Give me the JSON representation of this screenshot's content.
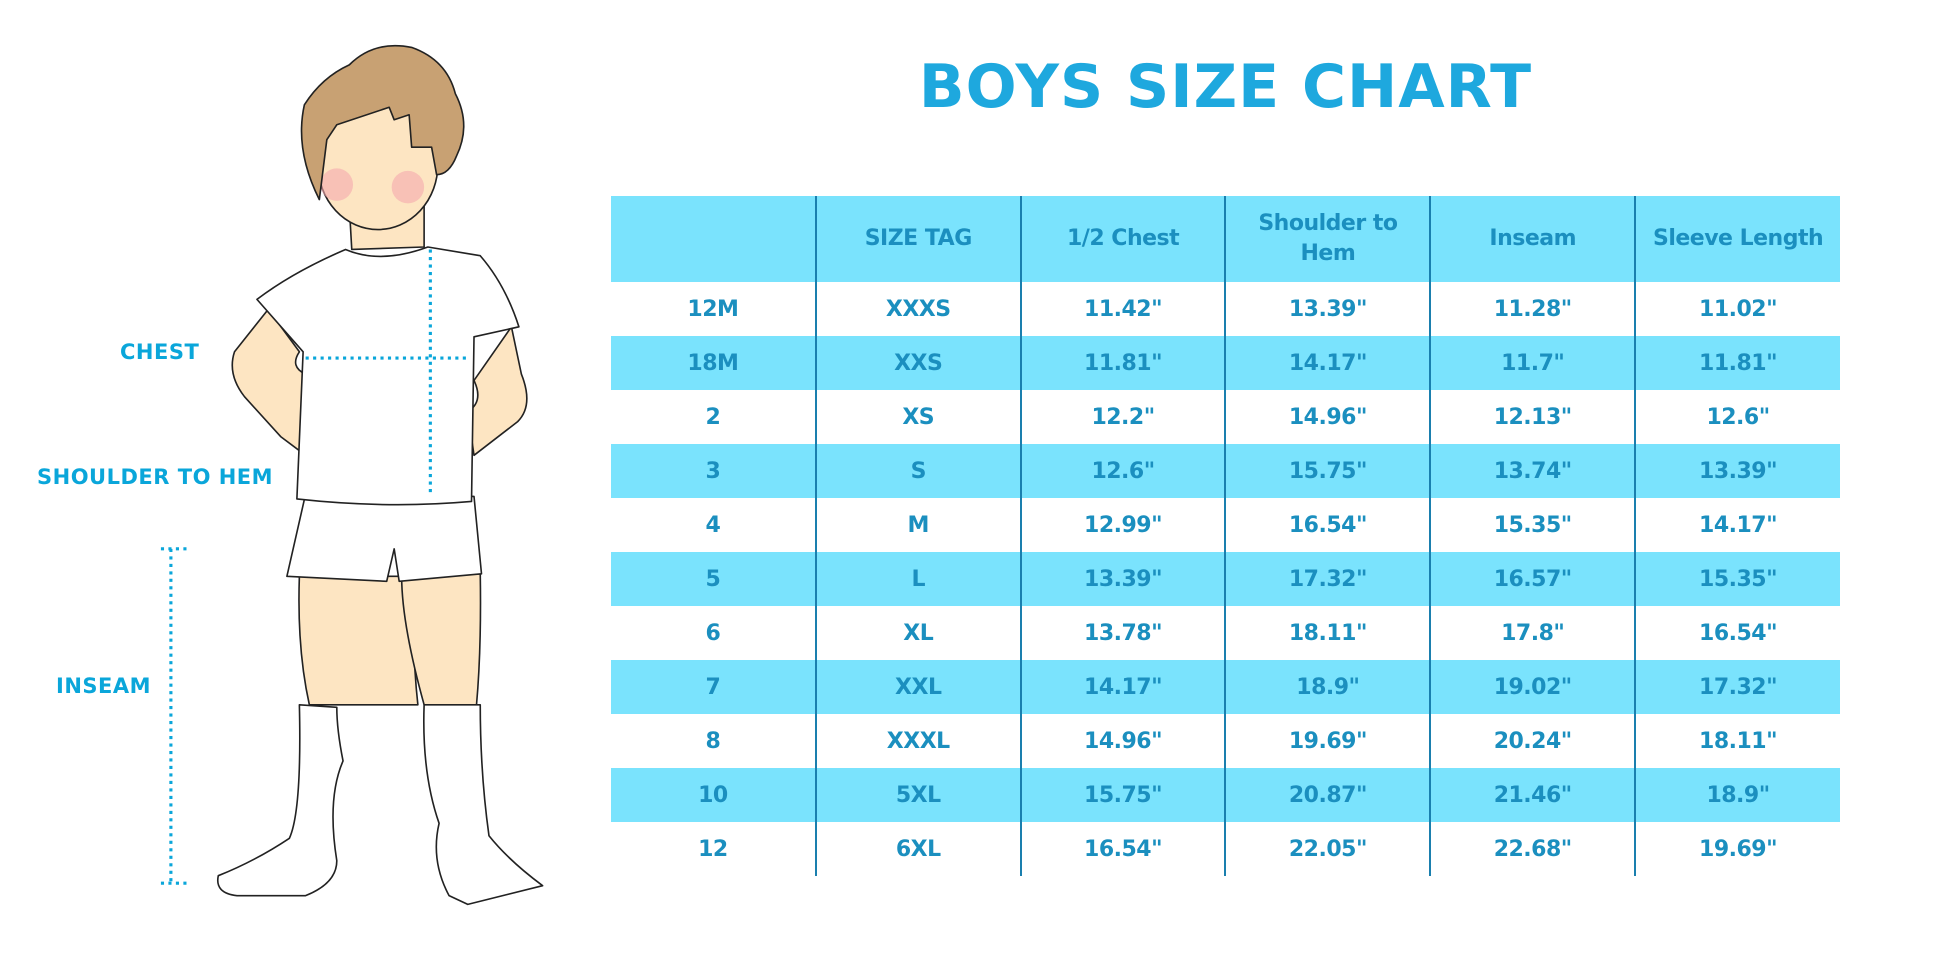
{
  "title": "BOYS SIZE CHART",
  "figure_labels": {
    "chest": "CHEST",
    "shoulder_to_hem": "SHOULDER TO HEM",
    "inseam": "INSEAM"
  },
  "colors": {
    "accent": "#1ea8de",
    "row_shade": "#7ae3fd",
    "text": "#1b8fbf",
    "hair": "#c8a173",
    "skin": "#fde5c2"
  },
  "table": {
    "headers": [
      "",
      "SIZE TAG",
      "1/2 Chest",
      "Shoulder to Hem",
      "Inseam",
      "Sleeve Length"
    ],
    "rows": [
      [
        "12M",
        "XXXS",
        "11.42\"",
        "13.39\"",
        "11.28\"",
        "11.02\""
      ],
      [
        "18M",
        "XXS",
        "11.81\"",
        "14.17\"",
        "11.7\"",
        "11.81\""
      ],
      [
        "2",
        "XS",
        "12.2\"",
        "14.96\"",
        "12.13\"",
        "12.6\""
      ],
      [
        "3",
        "S",
        "12.6\"",
        "15.75\"",
        "13.74\"",
        "13.39\""
      ],
      [
        "4",
        "M",
        "12.99\"",
        "16.54\"",
        "15.35\"",
        "14.17\""
      ],
      [
        "5",
        "L",
        "13.39\"",
        "17.32\"",
        "16.57\"",
        "15.35\""
      ],
      [
        "6",
        "XL",
        "13.78\"",
        "18.11\"",
        "17.8\"",
        "16.54\""
      ],
      [
        "7",
        "XXL",
        "14.17\"",
        "18.9\"",
        "19.02\"",
        "17.32\""
      ],
      [
        "8",
        "XXXL",
        "14.96\"",
        "19.69\"",
        "20.24\"",
        "18.11\""
      ],
      [
        "10",
        "5XL",
        "15.75\"",
        "20.87\"",
        "21.46\"",
        "18.9\""
      ],
      [
        "12",
        "6XL",
        "16.54\"",
        "22.05\"",
        "22.68\"",
        "19.69\""
      ]
    ]
  }
}
